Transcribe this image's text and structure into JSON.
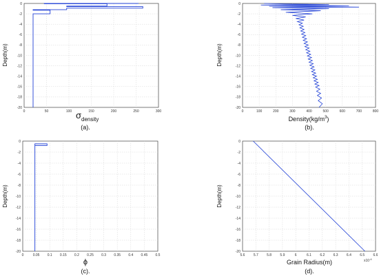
{
  "chart_data": [
    {
      "type": "line",
      "xlim": [
        0,
        300
      ],
      "ylim": [
        -20,
        0
      ],
      "x_ticks": [
        "0",
        "50",
        "100",
        "150",
        "200",
        "250",
        "300"
      ],
      "y_ticks": [
        "0",
        "-2",
        "-4",
        "-6",
        "-8",
        "-10",
        "-12",
        "-14",
        "-16",
        "-18",
        "-20"
      ],
      "ylabel": "Depth(m)",
      "xlabel_main": "σ",
      "xlabel_sub": "density",
      "caption": "(a).",
      "grid": true,
      "line_color": "#1f3fd6",
      "x": [
        20,
        20,
        58,
        58,
        20,
        20,
        95,
        95,
        265,
        265,
        95,
        95,
        185,
        185,
        45,
        45,
        255,
        255
      ],
      "y": [
        -20,
        -2.0,
        -2.0,
        -1.3,
        -1.3,
        -1.2,
        -1.2,
        -0.9,
        -0.9,
        -0.6,
        -0.6,
        -0.5,
        -0.5,
        -0.05,
        -0.05,
        0,
        0,
        -0.02
      ]
    },
    {
      "type": "line",
      "xlim": [
        0,
        800
      ],
      "ylim": [
        -20,
        0
      ],
      "x_ticks": [
        "0",
        "100",
        "200",
        "300",
        "400",
        "500",
        "600",
        "700",
        "800"
      ],
      "y_ticks": [
        "0",
        "-2",
        "-4",
        "-6",
        "-8",
        "-10",
        "-12",
        "-14",
        "-16",
        "-18",
        "-20"
      ],
      "ylabel": "Depth(m)",
      "xlabel": "Density(kg/m",
      "xlabel_sup": "3",
      "xlabel_end": ")",
      "caption": "(b).",
      "grid": true,
      "line_color": "#1f3fd6",
      "x": [
        130,
        250,
        520,
        110,
        640,
        160,
        700,
        180,
        520,
        230,
        470,
        260,
        420,
        300,
        380,
        320,
        370,
        330,
        360,
        340,
        365,
        345,
        370,
        350,
        375,
        355,
        380,
        360,
        385,
        365,
        390,
        370,
        395,
        375,
        400,
        380,
        405,
        385,
        410,
        390,
        415,
        395,
        420,
        400,
        425,
        405,
        430,
        410,
        435,
        415,
        440,
        420,
        445,
        425,
        450,
        430,
        455,
        435,
        460,
        440,
        465,
        445,
        470,
        450,
        475,
        455,
        480,
        460
      ],
      "y": [
        0,
        -0.1,
        -0.2,
        -0.3,
        -0.45,
        -0.55,
        -0.7,
        -0.8,
        -1.0,
        -1.2,
        -1.4,
        -1.7,
        -2.0,
        -2.3,
        -2.6,
        -2.9,
        -3.2,
        -3.5,
        -3.8,
        -4.1,
        -4.4,
        -4.7,
        -5.0,
        -5.3,
        -5.6,
        -5.9,
        -6.2,
        -6.5,
        -6.8,
        -7.1,
        -7.4,
        -7.7,
        -8.0,
        -8.3,
        -8.6,
        -8.9,
        -9.2,
        -9.5,
        -9.8,
        -10.1,
        -10.4,
        -10.7,
        -11.0,
        -11.3,
        -11.6,
        -11.9,
        -12.2,
        -12.5,
        -12.8,
        -13.1,
        -13.4,
        -13.7,
        -14.0,
        -14.3,
        -14.6,
        -14.9,
        -15.2,
        -15.5,
        -15.8,
        -16.1,
        -16.5,
        -16.9,
        -17.3,
        -17.7,
        -18.2,
        -18.7,
        -19.3,
        -20.0
      ]
    },
    {
      "type": "line",
      "xlim": [
        0,
        0.5
      ],
      "ylim": [
        -20,
        0
      ],
      "x_ticks": [
        "0",
        "0.05",
        "0.1",
        "0.15",
        "0.2",
        "0.25",
        "0.3",
        "0.35",
        "0.4",
        "0.45",
        "0.5"
      ],
      "y_ticks": [
        "0",
        "-2",
        "-4",
        "-6",
        "-8",
        "-10",
        "-12",
        "-14",
        "-16",
        "-18",
        "-20"
      ],
      "ylabel": "Depth(m)",
      "xlabel": "ϕ",
      "caption": "(c).",
      "grid": true,
      "line_color": "#1f3fd6",
      "x": [
        0.045,
        0.045,
        0.09,
        0.09,
        0.045
      ],
      "y": [
        -20,
        -0.5,
        -0.5,
        -0.8,
        -0.8
      ]
    },
    {
      "type": "line",
      "xlim": [
        5.6,
        6.6
      ],
      "ylim": [
        -20,
        0
      ],
      "x_ticks": [
        "5.6",
        "5.7",
        "5.8",
        "5.9",
        "6",
        "6.1",
        "6.2",
        "6.3",
        "6.4",
        "6.5",
        "6.6"
      ],
      "y_ticks": [
        "0",
        "-2",
        "-4",
        "-6",
        "-8",
        "-10",
        "-12",
        "-14",
        "-16",
        "-18",
        "-20"
      ],
      "ylabel": "Depth(m)",
      "xlabel": "Grain Radius(m)",
      "x_exponent": "x10",
      "x_exponent_power": "-4",
      "caption": "(d).",
      "grid": true,
      "line_color": "#1f3fd6",
      "x": [
        5.68,
        6.52
      ],
      "y": [
        0,
        -20
      ]
    }
  ]
}
